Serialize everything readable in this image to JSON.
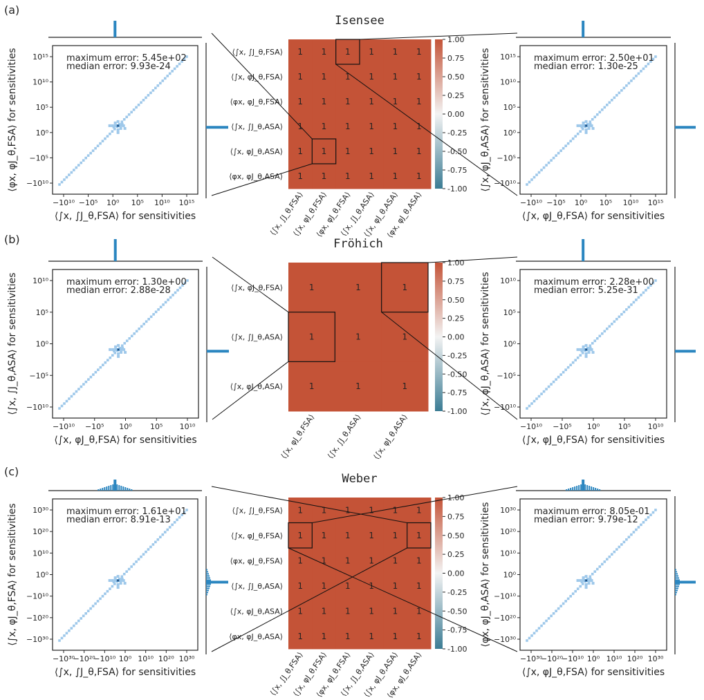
{
  "figure": {
    "colorbar": {
      "ticks": [
        "1.00",
        "0.75",
        "0.50",
        "0.25",
        "0.00",
        "-0.25",
        "-0.50",
        "-0.75",
        "-1.00"
      ],
      "colors": {
        "top": "#c45337",
        "mid": "#f3f3f3",
        "bottom": "#3b7c94"
      }
    },
    "colors": {
      "heat_cell": "#c45337",
      "scatter": "#9ec8ea",
      "scatter_dense": "#4a8fc7",
      "hist": "#2b86c0"
    },
    "sensitivities_suffix": "for sensitivities"
  },
  "chart_data": [
    {
      "panel": "(a)",
      "title": "Isensee",
      "type": "heatmap",
      "row_labels": [
        "⟨∫x, ∫J_θ,FSA⟩",
        "⟨∫x, φJ_θ,FSA⟩",
        "⟨φx, φJ_θ,FSA⟩",
        "⟨∫x, ∫J_θ,ASA⟩",
        "⟨∫x, φJ_θ,ASA⟩",
        "⟨φx, φJ_θ,ASA⟩"
      ],
      "col_labels": [
        "⟨∫x, ∫J_θ,FSA⟩",
        "⟨∫x, φJ_θ,FSA⟩",
        "⟨φx, φJ_θ,FSA⟩",
        "⟨∫x, ∫J_θ,ASA⟩",
        "⟨∫x, φJ_θ,ASA⟩",
        "⟨φx, φJ_θ,ASA⟩"
      ],
      "values": [
        [
          1,
          1,
          1,
          1,
          1,
          1
        ],
        [
          1,
          1,
          1,
          1,
          1,
          1
        ],
        [
          1,
          1,
          1,
          1,
          1,
          1
        ],
        [
          1,
          1,
          1,
          1,
          1,
          1
        ],
        [
          1,
          1,
          1,
          1,
          1,
          1
        ],
        [
          1,
          1,
          1,
          1,
          1,
          1
        ]
      ],
      "highlight_cells": [
        [
          0,
          2
        ],
        [
          4,
          1
        ]
      ],
      "clim": [
        -1,
        1
      ],
      "scatter_left": {
        "type": "scatter",
        "xlabel": "⟨∫x, ∫J_θ,FSA⟩ for sensitivities",
        "ylabel": "⟨φx, φJ_θ,FSA⟩ for sensitivities",
        "xticks": [
          "−10¹⁰",
          "−10⁵",
          "10⁰",
          "10⁵",
          "10¹⁰",
          "10¹⁵"
        ],
        "yticks": [
          "10¹⁵",
          "10¹⁰",
          "10⁵",
          "10⁰",
          "−10⁵",
          "−10¹⁰"
        ],
        "annotation": [
          "maximum error: 5.45e+02",
          "median error: 9.93e-24"
        ]
      },
      "scatter_right": {
        "type": "scatter",
        "xlabel": "⟨∫x, φJ_θ,FSA⟩ for sensitivities",
        "ylabel": "⟨∫x, φJ_θ,ASA⟩ for sensitivities",
        "xticks": [
          "−10¹⁰",
          "−10⁵",
          "10⁰",
          "10⁵",
          "10¹⁰",
          "10¹⁵"
        ],
        "yticks": [
          "10¹⁵",
          "10¹⁰",
          "10⁵",
          "10⁰",
          "−10⁵",
          "−10¹⁰"
        ],
        "annotation": [
          "maximum error: 2.50e+01",
          "median error: 1.30e-25"
        ]
      }
    },
    {
      "panel": "(b)",
      "title": "Fröhich",
      "type": "heatmap",
      "row_labels": [
        "⟨∫x, φJ_θ,FSA⟩",
        "⟨∫x, ∫J_θ,ASA⟩",
        "⟨∫x, φJ_θ,ASA⟩"
      ],
      "col_labels": [
        "⟨∫x, φJ_θ,FSA⟩",
        "⟨∫x, ∫J_θ,ASA⟩",
        "⟨∫x, φJ_θ,ASA⟩"
      ],
      "values": [
        [
          1,
          1,
          1
        ],
        [
          1,
          1,
          1
        ],
        [
          1,
          1,
          1
        ]
      ],
      "highlight_cells": [
        [
          0,
          2
        ],
        [
          1,
          0
        ]
      ],
      "clim": [
        -1,
        1
      ],
      "scatter_left": {
        "type": "scatter",
        "xlabel": "⟨∫x, φJ_θ,FSA⟩ for sensitivities",
        "ylabel": "⟨∫x, ∫J_θ,ASA⟩ for sensitivities",
        "xticks": [
          "−10¹⁰",
          "−10⁵",
          "10⁰",
          "10⁵",
          "10¹⁰"
        ],
        "yticks": [
          "10¹⁰",
          "10⁵",
          "10⁰",
          "−10⁵",
          "−10¹⁰"
        ],
        "annotation": [
          "maximum error: 1.30e+00",
          "median error: 2.88e-28"
        ]
      },
      "scatter_right": {
        "type": "scatter",
        "xlabel": "⟨∫x, φJ_θ,FSA⟩ for sensitivities",
        "ylabel": "⟨∫x, φJ_θ,ASA⟩ for sensitivities",
        "xticks": [
          "−10¹⁰",
          "−10⁵",
          "10⁰",
          "10⁵",
          "10¹⁰"
        ],
        "yticks": [
          "10¹⁰",
          "10⁵",
          "10⁰",
          "−10⁵",
          "−10¹⁰"
        ],
        "annotation": [
          "maximum error: 2.28e+00",
          "median error: 5.25e-31"
        ]
      }
    },
    {
      "panel": "(c)",
      "title": "Weber",
      "type": "heatmap",
      "row_labels": [
        "⟨∫x, ∫J_θ,FSA⟩",
        "⟨∫x, φJ_θ,FSA⟩",
        "⟨φx, φJ_θ,FSA⟩",
        "⟨∫x, ∫J_θ,ASA⟩",
        "⟨∫x, φJ_θ,ASA⟩",
        "⟨φx, φJ_θ,ASA⟩"
      ],
      "col_labels": [
        "⟨∫x, ∫J_θ,FSA⟩",
        "⟨∫x, φJ_θ,FSA⟩",
        "⟨φx, φJ_θ,FSA⟩",
        "⟨∫x, ∫J_θ,ASA⟩",
        "⟨∫x, φJ_θ,ASA⟩",
        "⟨φx, φJ_θ,ASA⟩"
      ],
      "values": [
        [
          1,
          1,
          1,
          1,
          1,
          1
        ],
        [
          1,
          1,
          1,
          1,
          1,
          1
        ],
        [
          1,
          1,
          1,
          1,
          1,
          1
        ],
        [
          1,
          1,
          1,
          1,
          1,
          1
        ],
        [
          1,
          1,
          1,
          1,
          1,
          1
        ],
        [
          1,
          1,
          1,
          1,
          1,
          1
        ]
      ],
      "highlight_cells": [
        [
          1,
          0
        ],
        [
          1,
          5
        ]
      ],
      "clim": [
        -1,
        1
      ],
      "scatter_left": {
        "type": "scatter",
        "xlabel": "⟨∫x, ∫J_θ,FSA⟩ for sensitivities",
        "ylabel": "⟨∫x, φJ_θ,FSA⟩ for sensitivities",
        "xticks": [
          "−10³⁰",
          "−10²⁰",
          "−10¹⁰",
          "10⁰",
          "10¹⁰",
          "10²⁰",
          "10³⁰"
        ],
        "yticks": [
          "10³⁰",
          "10²⁰",
          "10¹⁰",
          "10⁰",
          "−10¹⁰",
          "−10²⁰",
          "−10³⁰"
        ],
        "annotation": [
          "maximum error: 1.61e+01",
          "median error: 8.91e-13"
        ]
      },
      "scatter_right": {
        "type": "scatter",
        "xlabel": "⟨∫x, φJ_θ,FSA⟩ for sensitivities",
        "ylabel": "⟨φx, φJ_θ,ASA⟩ for sensitivities",
        "xticks": [
          "−10³⁰",
          "−10²⁰",
          "−10¹⁰",
          "10⁰",
          "10¹⁰",
          "10²⁰",
          "10³⁰"
        ],
        "yticks": [
          "10³⁰",
          "10²⁰",
          "10¹⁰",
          "10⁰",
          "−10¹⁰",
          "−10²⁰",
          "−10³⁰"
        ],
        "annotation": [
          "maximum error: 8.05e-01",
          "median error: 9.79e-12"
        ]
      }
    }
  ]
}
